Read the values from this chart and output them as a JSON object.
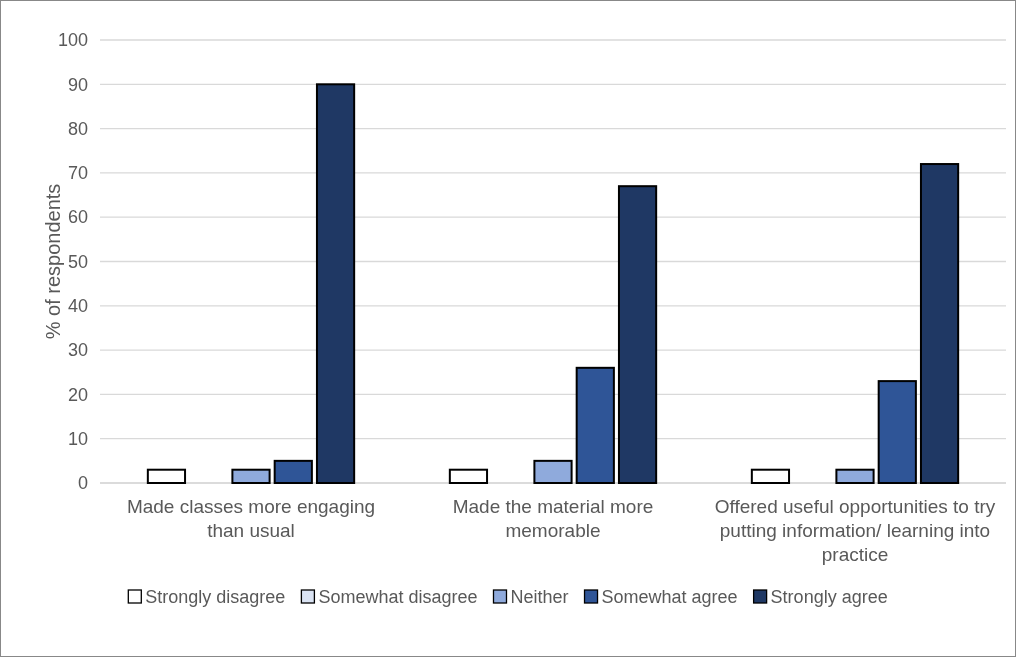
{
  "chart_data": {
    "type": "bar",
    "ylabel": "% of respondents",
    "categories": [
      "Made classes more engaging than usual",
      "Made the material more memorable",
      "Offered useful opportunities to try putting information/ learning into practice"
    ],
    "series": [
      {
        "name": "Strongly disagree",
        "color": "#ffffff",
        "values": [
          3,
          3,
          3
        ]
      },
      {
        "name": "Somewhat disagree",
        "color": "#dae3f3",
        "values": [
          0,
          0,
          0
        ]
      },
      {
        "name": "Neither",
        "color": "#8faadc",
        "values": [
          3,
          5,
          3
        ]
      },
      {
        "name": "Somewhat agree",
        "color": "#2f5597",
        "values": [
          5,
          26,
          23
        ]
      },
      {
        "name": "Strongly agree",
        "color": "#1f3864",
        "values": [
          90,
          67,
          72
        ]
      }
    ],
    "ylim": [
      0,
      100
    ],
    "yticks": [
      0,
      10,
      20,
      30,
      40,
      50,
      60,
      70,
      80,
      90,
      100
    ],
    "grid": "y",
    "legend": "bottom"
  }
}
